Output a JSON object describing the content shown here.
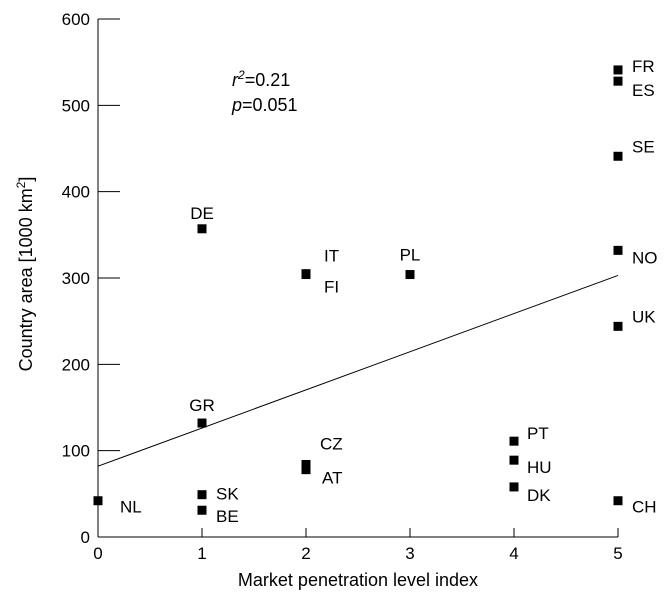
{
  "chart_data": {
    "type": "scatter",
    "title": "",
    "xlabel": "Market penetration level index",
    "ylabel": "Country area [1000 km",
    "ylabel_sup": "2",
    "ylabel_close": "]",
    "xlim": [
      0,
      5
    ],
    "ylim": [
      0,
      600
    ],
    "xticks": [
      0,
      1,
      2,
      3,
      4,
      5
    ],
    "yticks": [
      0,
      100,
      200,
      300,
      400,
      500,
      600
    ],
    "grid": false,
    "points": [
      {
        "label": "NL",
        "x": 0,
        "y": 42
      },
      {
        "label": "DE",
        "x": 1,
        "y": 357
      },
      {
        "label": "GR",
        "x": 1,
        "y": 132
      },
      {
        "label": "SK",
        "x": 1,
        "y": 49
      },
      {
        "label": "BE",
        "x": 1,
        "y": 31
      },
      {
        "label": "IT",
        "x": 2,
        "y": 305
      },
      {
        "label": "FI",
        "x": 2,
        "y": 304
      },
      {
        "label": "CZ",
        "x": 2,
        "y": 84
      },
      {
        "label": "AT",
        "x": 2,
        "y": 78
      },
      {
        "label": "PL",
        "x": 3,
        "y": 304
      },
      {
        "label": "PT",
        "x": 4,
        "y": 111
      },
      {
        "label": "HU",
        "x": 4,
        "y": 89
      },
      {
        "label": "DK",
        "x": 4,
        "y": 58
      },
      {
        "label": "FR",
        "x": 5,
        "y": 541
      },
      {
        "label": "ES",
        "x": 5,
        "y": 528
      },
      {
        "label": "SE",
        "x": 5,
        "y": 441
      },
      {
        "label": "NO",
        "x": 5,
        "y": 332
      },
      {
        "label": "UK",
        "x": 5,
        "y": 244
      },
      {
        "label": "CH",
        "x": 5,
        "y": 42
      }
    ],
    "fit_line": {
      "x_start": 0,
      "y_start": 82,
      "x_end": 5,
      "y_end": 303
    },
    "annotations": {
      "r2_symbol": "r",
      "r2_sup": "2",
      "r2_value": "=0.21",
      "p_symbol": "p",
      "p_value": "=0.051"
    }
  }
}
